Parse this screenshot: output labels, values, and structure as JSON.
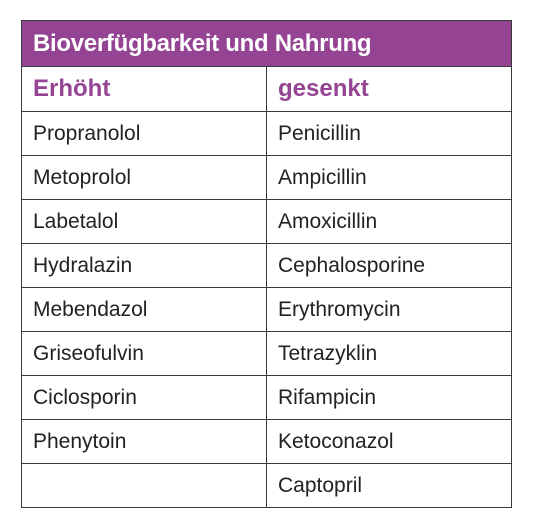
{
  "table": {
    "title": "Bioverfügbarkeit und Nahrung",
    "columns": [
      "Erhöht",
      "gesenkt"
    ],
    "rows": [
      [
        "Propranolol",
        "Penicillin"
      ],
      [
        "Metoprolol",
        "Ampicillin"
      ],
      [
        "Labetalol",
        "Amoxicillin"
      ],
      [
        "Hydralazin",
        "Cephalosporine"
      ],
      [
        "Mebendazol",
        "Erythromycin"
      ],
      [
        "Griseofulvin",
        "Tetrazyklin"
      ],
      [
        "Ciclosporin",
        "Rifampicin"
      ],
      [
        "Phenytoin",
        "Ketoconazol"
      ],
      [
        "",
        "Captopril"
      ]
    ],
    "accent_color": "#944493"
  }
}
